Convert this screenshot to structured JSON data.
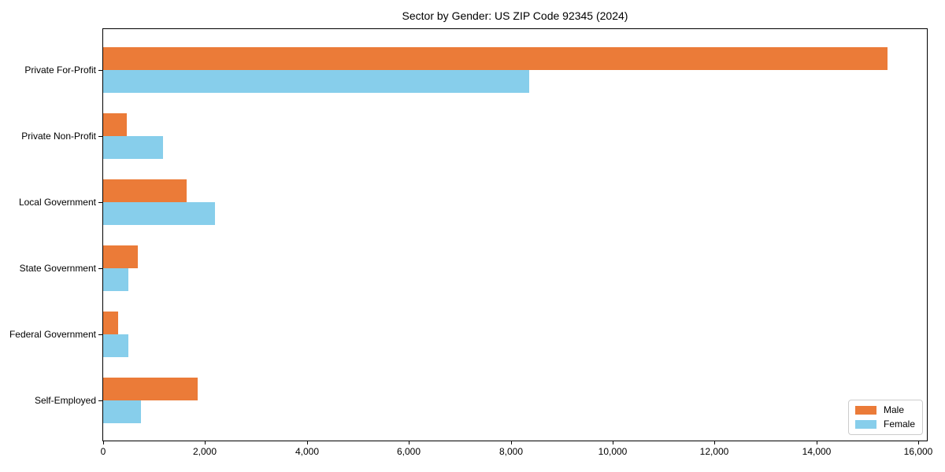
{
  "chart_data": {
    "type": "bar",
    "orientation": "horizontal",
    "title": "Sector by Gender: US ZIP Code 92345 (2024)",
    "categories": [
      "Private For-Profit",
      "Private Non-Profit",
      "Local Government",
      "State Government",
      "Federal Government",
      "Self-Employed"
    ],
    "series": [
      {
        "name": "Male",
        "color": "#EB7B38",
        "values": [
          15400,
          470,
          1640,
          680,
          290,
          1850
        ]
      },
      {
        "name": "Female",
        "color": "#87CEEB",
        "values": [
          8360,
          1180,
          2200,
          500,
          490,
          740
        ]
      }
    ],
    "xlabel": "",
    "ylabel": "",
    "xlim": [
      0,
      16170
    ],
    "x_ticks": [
      0,
      2000,
      4000,
      6000,
      8000,
      10000,
      12000,
      14000,
      16000
    ],
    "x_tick_labels": [
      "0",
      "2,000",
      "4,000",
      "6,000",
      "8,000",
      "10,000",
      "12,000",
      "14,000",
      "16,000"
    ],
    "grid": false,
    "legend": {
      "position": "lower-right",
      "entries": [
        "Male",
        "Female"
      ]
    }
  }
}
